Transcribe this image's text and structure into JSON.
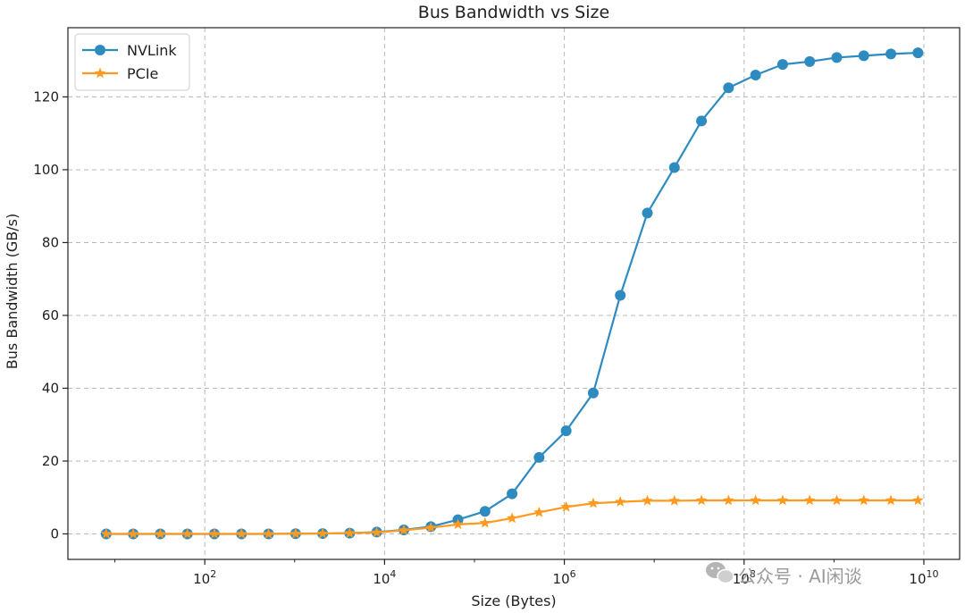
{
  "chart_data": {
    "type": "line",
    "title": "Bus Bandwidth vs Size",
    "xlabel": "Size (Bytes)",
    "ylabel": "Bus Bandwidth (GB/s)",
    "xscale": "log",
    "xlim": [
      3.0,
      25000000000.0
    ],
    "ylim": [
      -7,
      139
    ],
    "xticks": [
      100,
      10000,
      1000000,
      100000000,
      10000000000
    ],
    "xtick_labels": [
      {
        "base": "10",
        "exp": "2"
      },
      {
        "base": "10",
        "exp": "4"
      },
      {
        "base": "10",
        "exp": "6"
      },
      {
        "base": "10",
        "exp": "8"
      },
      {
        "base": "10",
        "exp": "10"
      }
    ],
    "yticks": [
      0,
      20,
      40,
      60,
      80,
      100,
      120
    ],
    "grid": true,
    "legend_position": "top-left",
    "x": [
      8,
      16,
      32,
      64,
      128,
      256,
      512,
      1024,
      2048,
      4096,
      8192,
      16384,
      32768,
      65536,
      131072,
      262144,
      524288,
      1048576,
      2097152,
      4194304,
      8388608,
      16777216,
      33554432,
      67108864,
      134217728,
      268435456,
      536870912,
      1073741824,
      2147483648,
      4294967296,
      8589934592
    ],
    "series": [
      {
        "name": "NVLink",
        "color": "#2e8bc0",
        "marker": "circle",
        "values": [
          0.0,
          0.0,
          0.0,
          0.0,
          0.0,
          0.0,
          0.0,
          0.05,
          0.1,
          0.2,
          0.5,
          1.1,
          2.0,
          3.9,
          6.2,
          11.0,
          21.0,
          28.3,
          38.7,
          65.5,
          88.1,
          100.6,
          113.4,
          122.5,
          126.0,
          128.9,
          129.7,
          130.8,
          131.3,
          131.8,
          132.1
        ]
      },
      {
        "name": "PCIe",
        "color": "#ff9a1f",
        "marker": "star",
        "values": [
          0.0,
          0.0,
          0.0,
          0.0,
          0.0,
          0.0,
          0.0,
          0.05,
          0.1,
          0.2,
          0.4,
          1.0,
          1.7,
          2.6,
          3.0,
          4.3,
          5.9,
          7.4,
          8.4,
          8.8,
          9.1,
          9.1,
          9.2,
          9.2,
          9.2,
          9.2,
          9.2,
          9.2,
          9.2,
          9.2,
          9.2
        ]
      }
    ]
  },
  "watermark": {
    "text": "公众号 · AI闲谈",
    "icon": "wechat-icon"
  }
}
